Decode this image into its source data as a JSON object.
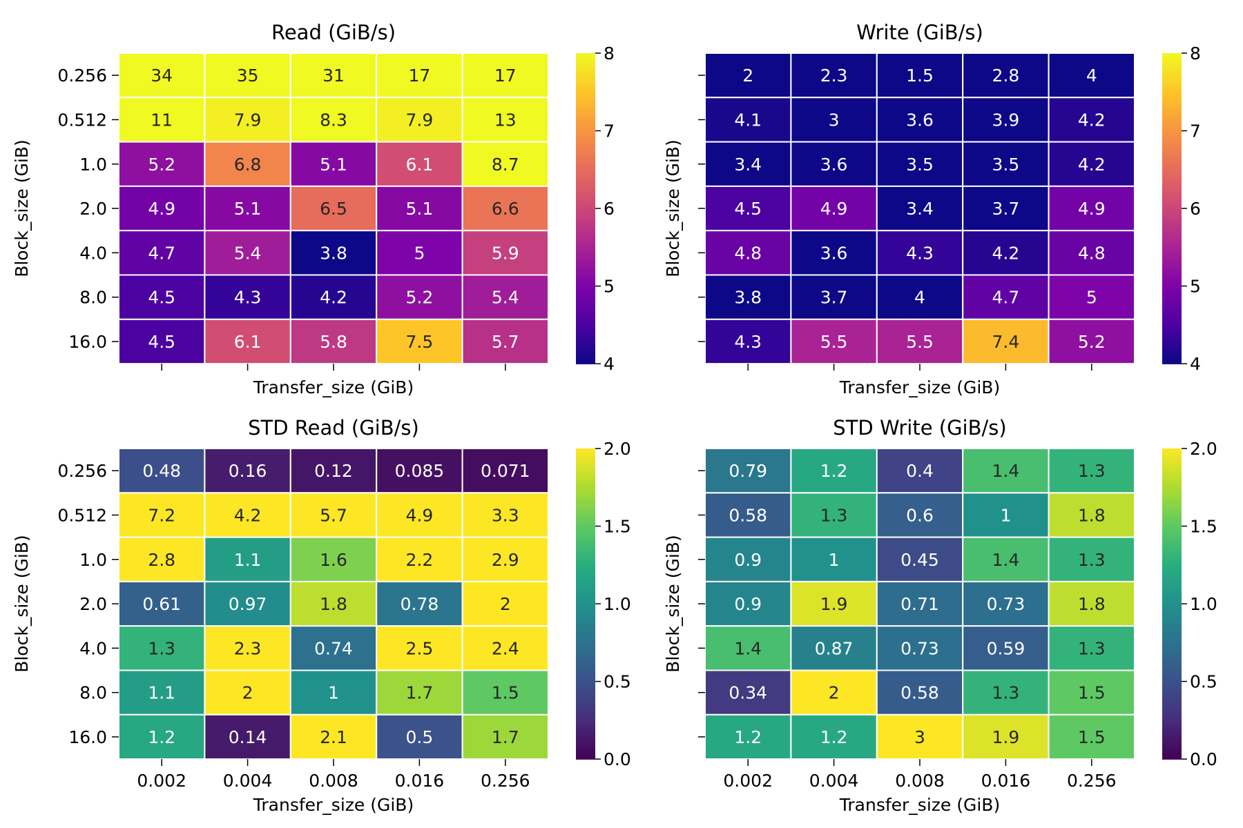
{
  "chart_data": [
    {
      "type": "heatmap",
      "title": "Read (GiB/s)",
      "xlabel": "Transfer_size (GiB)",
      "ylabel": "Block_size (GiB)",
      "x_categories": [
        "0.002",
        "0.004",
        "0.008",
        "0.016",
        "0.256"
      ],
      "y_categories": [
        "0.256",
        "0.512",
        "1.0",
        "2.0",
        "4.0",
        "8.0",
        "16.0"
      ],
      "show_xticklabels": false,
      "show_yticklabels": true,
      "colormap": "plasma",
      "vmin": 4,
      "vmax": 8,
      "colorbar_ticks": [
        "4",
        "5",
        "6",
        "7",
        "8"
      ],
      "values": [
        [
          34,
          35,
          31,
          17,
          17
        ],
        [
          11,
          7.9,
          8.3,
          7.9,
          13
        ],
        [
          5.2,
          6.8,
          5.1,
          6.1,
          8.7
        ],
        [
          4.9,
          5.1,
          6.5,
          5.1,
          6.6
        ],
        [
          4.7,
          5.4,
          3.8,
          5,
          5.9
        ],
        [
          4.5,
          4.3,
          4.2,
          5.2,
          5.4
        ],
        [
          4.5,
          6.1,
          5.8,
          7.5,
          5.7
        ]
      ]
    },
    {
      "type": "heatmap",
      "title": "Write (GiB/s)",
      "xlabel": "Transfer_size (GiB)",
      "ylabel": "Block_size (GiB)",
      "x_categories": [
        "0.002",
        "0.004",
        "0.008",
        "0.016",
        "0.256"
      ],
      "y_categories": [
        "0.256",
        "0.512",
        "1.0",
        "2.0",
        "4.0",
        "8.0",
        "16.0"
      ],
      "show_xticklabels": false,
      "show_yticklabels": false,
      "colormap": "plasma",
      "vmin": 4,
      "vmax": 8,
      "colorbar_ticks": [
        "4",
        "5",
        "6",
        "7",
        "8"
      ],
      "values": [
        [
          2,
          2.3,
          1.5,
          2.8,
          4
        ],
        [
          4.1,
          3,
          3.6,
          3.9,
          4.2
        ],
        [
          3.4,
          3.6,
          3.5,
          3.5,
          4.2
        ],
        [
          4.5,
          4.9,
          3.4,
          3.7,
          4.9
        ],
        [
          4.8,
          3.6,
          4.3,
          4.2,
          4.8
        ],
        [
          3.8,
          3.7,
          4,
          4.7,
          5
        ],
        [
          4.3,
          5.5,
          5.5,
          7.4,
          5.2
        ]
      ]
    },
    {
      "type": "heatmap",
      "title": "STD Read (GiB/s)",
      "xlabel": "Transfer_size (GiB)",
      "ylabel": "Block_size (GiB)",
      "x_categories": [
        "0.002",
        "0.004",
        "0.008",
        "0.016",
        "0.256"
      ],
      "y_categories": [
        "0.256",
        "0.512",
        "1.0",
        "2.0",
        "4.0",
        "8.0",
        "16.0"
      ],
      "show_xticklabels": true,
      "show_yticklabels": true,
      "colormap": "viridis",
      "vmin": 0,
      "vmax": 2,
      "colorbar_ticks": [
        "0.0",
        "0.5",
        "1.0",
        "1.5",
        "2.0"
      ],
      "values": [
        [
          0.48,
          0.16,
          0.12,
          0.085,
          0.071
        ],
        [
          7.2,
          4.2,
          5.7,
          4.9,
          3.3
        ],
        [
          2.8,
          1.1,
          1.6,
          2.2,
          2.9
        ],
        [
          0.61,
          0.97,
          1.8,
          0.78,
          2
        ],
        [
          1.3,
          2.3,
          0.74,
          2.5,
          2.4
        ],
        [
          1.1,
          2,
          1,
          1.7,
          1.5
        ],
        [
          1.2,
          0.14,
          2.1,
          0.5,
          1.7
        ]
      ]
    },
    {
      "type": "heatmap",
      "title": "STD Write (GiB/s)",
      "xlabel": "Transfer_size (GiB)",
      "ylabel": "Block_size (GiB)",
      "x_categories": [
        "0.002",
        "0.004",
        "0.008",
        "0.016",
        "0.256"
      ],
      "y_categories": [
        "0.256",
        "0.512",
        "1.0",
        "2.0",
        "4.0",
        "8.0",
        "16.0"
      ],
      "show_xticklabels": true,
      "show_yticklabels": false,
      "colormap": "viridis",
      "vmin": 0,
      "vmax": 2,
      "colorbar_ticks": [
        "0.0",
        "0.5",
        "1.0",
        "1.5",
        "2.0"
      ],
      "values": [
        [
          0.79,
          1.2,
          0.4,
          1.4,
          1.3
        ],
        [
          0.58,
          1.3,
          0.6,
          1,
          1.8
        ],
        [
          0.9,
          1,
          0.45,
          1.4,
          1.3
        ],
        [
          0.9,
          1.9,
          0.71,
          0.73,
          1.8
        ],
        [
          1.4,
          0.87,
          0.73,
          0.59,
          1.3
        ],
        [
          0.34,
          2,
          0.58,
          1.3,
          1.5
        ],
        [
          1.2,
          1.2,
          3,
          1.9,
          1.5
        ]
      ]
    }
  ]
}
